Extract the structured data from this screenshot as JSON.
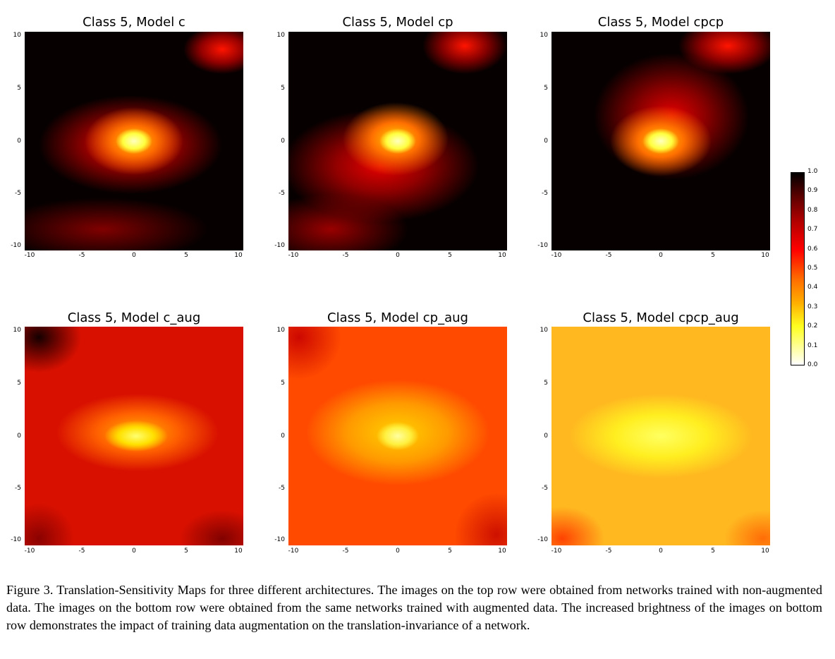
{
  "chart_data": [
    {
      "type": "heatmap",
      "title": "Class 5, Model c",
      "xlim": [
        -10,
        10
      ],
      "ylim": [
        -10,
        10
      ],
      "xticks": [
        "-10",
        "-5",
        "0",
        "5",
        "10"
      ],
      "yticks": [
        "10",
        "5",
        "0",
        "-5",
        "-10"
      ],
      "peak": [
        0,
        0
      ],
      "overall_brightness": 0.15
    },
    {
      "type": "heatmap",
      "title": "Class 5, Model cp",
      "xlim": [
        -10,
        10
      ],
      "ylim": [
        -10,
        10
      ],
      "xticks": [
        "-10",
        "-5",
        "0",
        "5",
        "10"
      ],
      "yticks": [
        "10",
        "5",
        "0",
        "-5",
        "-10"
      ],
      "peak": [
        0,
        0
      ],
      "overall_brightness": 0.2
    },
    {
      "type": "heatmap",
      "title": "Class 5, Model cpcp",
      "xlim": [
        -10,
        10
      ],
      "ylim": [
        -10,
        10
      ],
      "xticks": [
        "-10",
        "-5",
        "0",
        "5",
        "10"
      ],
      "yticks": [
        "10",
        "5",
        "0",
        "-5",
        "-10"
      ],
      "peak": [
        0,
        0
      ],
      "overall_brightness": 0.15
    },
    {
      "type": "heatmap",
      "title": "Class 5, Model c_aug",
      "xlim": [
        -10,
        10
      ],
      "ylim": [
        -10,
        10
      ],
      "xticks": [
        "-10",
        "-5",
        "0",
        "5",
        "10"
      ],
      "yticks": [
        "10",
        "5",
        "0",
        "-5",
        "-10"
      ],
      "peak": [
        0,
        0
      ],
      "overall_brightness": 0.55
    },
    {
      "type": "heatmap",
      "title": "Class 5, Model cp_aug",
      "xlim": [
        -10,
        10
      ],
      "ylim": [
        -10,
        10
      ],
      "xticks": [
        "-10",
        "-5",
        "0",
        "5",
        "10"
      ],
      "yticks": [
        "10",
        "5",
        "0",
        "-5",
        "-10"
      ],
      "peak": [
        0,
        0
      ],
      "overall_brightness": 0.7
    },
    {
      "type": "heatmap",
      "title": "Class 5, Model cpcp_aug",
      "xlim": [
        -10,
        10
      ],
      "ylim": [
        -10,
        10
      ],
      "xticks": [
        "-10",
        "-5",
        "0",
        "5",
        "10"
      ],
      "yticks": [
        "10",
        "5",
        "0",
        "-5",
        "-10"
      ],
      "peak": [
        0,
        0
      ],
      "overall_brightness": 0.85
    }
  ],
  "colorbar": {
    "ticks": [
      "1.0",
      "0.9",
      "0.8",
      "0.7",
      "0.6",
      "0.5",
      "0.4",
      "0.3",
      "0.2",
      "0.1",
      "0.0"
    ],
    "range": [
      0.0,
      1.0
    ],
    "colormap": "hot"
  },
  "caption": "Figure 3. Translation-Sensitivity Maps for three different architectures. The images on the top row were obtained from networks trained with non-augmented data. The images on the bottom row were obtained from the same networks trained with augmented data. The increased brightness of the images on bottom row demonstrates the impact of training data augmentation on the translation-invariance of a network."
}
